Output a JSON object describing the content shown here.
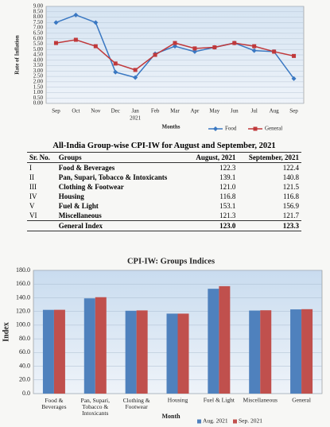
{
  "chart_data": [
    {
      "type": "line",
      "ylabel": "Rate of Inflation",
      "xlabel": "Months",
      "year_label": "2021",
      "categories": [
        "Sep",
        "Oct",
        "Nov",
        "Dec",
        "Jan",
        "Feb",
        "Mar",
        "Apr",
        "May",
        "Jun",
        "Jul",
        "Aug",
        "Sep"
      ],
      "series": [
        {
          "name": "Food",
          "color": "#3a78c2",
          "values": [
            7.5,
            8.2,
            7.5,
            2.9,
            2.4,
            4.6,
            5.3,
            4.8,
            5.2,
            5.6,
            4.9,
            4.8,
            2.3
          ]
        },
        {
          "name": "General",
          "color": "#c0393b",
          "values": [
            5.6,
            5.9,
            5.3,
            3.7,
            3.1,
            4.5,
            5.6,
            5.1,
            5.2,
            5.6,
            5.3,
            4.8,
            4.4
          ]
        }
      ],
      "ylim": [
        0,
        9
      ],
      "yticks": [
        {
          "value": 0,
          "label": "0.00"
        },
        {
          "value": 0.5,
          "label": "0.50"
        },
        {
          "value": 1,
          "label": "1.00"
        },
        {
          "value": 1.5,
          "label": "1.50"
        },
        {
          "value": 2,
          "label": "2.00"
        },
        {
          "value": 2.5,
          "label": "2.50"
        },
        {
          "value": 3,
          "label": "3.00"
        },
        {
          "value": 3.5,
          "label": "3.50"
        },
        {
          "value": 4,
          "label": "4.00"
        },
        {
          "value": 4.5,
          "label": "4.50"
        },
        {
          "value": 5,
          "label": "5.00"
        },
        {
          "value": 5.5,
          "label": "5.50"
        },
        {
          "value": 6,
          "label": "6.00"
        },
        {
          "value": 6.5,
          "label": "6.50"
        },
        {
          "value": 7,
          "label": "7.00"
        },
        {
          "value": 7.5,
          "label": "7.50"
        },
        {
          "value": 8,
          "label": "8.00"
        },
        {
          "value": 8.5,
          "label": "8.50"
        },
        {
          "value": 9,
          "label": "9.00"
        }
      ],
      "grid": true
    },
    {
      "type": "bar",
      "title": "CPI-IW: Groups Indices",
      "ylabel": "Index",
      "xlabel": "Month",
      "categories": [
        "Food &\nBeverages",
        "Pan, Supari,\nTobacco &\nIntoxicants",
        "Clothing &\nFootwear",
        "Housing",
        "Fuel & Light",
        "Miscellaneous",
        "General"
      ],
      "series": [
        {
          "name": "Aug. 2021",
          "color": "#4f81bd",
          "values": [
            122.3,
            139.1,
            121.0,
            116.8,
            153.1,
            121.3,
            123.0
          ]
        },
        {
          "name": "Sep. 2021",
          "color": "#c0504d",
          "values": [
            122.4,
            140.8,
            121.5,
            116.8,
            156.9,
            121.7,
            123.3
          ]
        }
      ],
      "ylim": [
        0,
        180
      ],
      "yticks": [
        {
          "value": 0,
          "label": "0.0"
        },
        {
          "value": 20,
          "label": "20.0"
        },
        {
          "value": 40,
          "label": "40.0"
        },
        {
          "value": 60,
          "label": "60.0"
        },
        {
          "value": 80,
          "label": "80.0"
        },
        {
          "value": 100,
          "label": "100.0"
        },
        {
          "value": 120,
          "label": "120.0"
        },
        {
          "value": 140,
          "label": "140.0"
        },
        {
          "value": 160,
          "label": "160.0"
        },
        {
          "value": 180,
          "label": "180.0"
        }
      ],
      "grid": true
    }
  ],
  "table": {
    "title": "All-India Group-wise CPI-IW for August and  September, 2021",
    "header": [
      "Sr. No.",
      "Groups",
      "August, 2021",
      "September, 2021"
    ],
    "rows": [
      [
        "I",
        "Food & Beverages",
        "122.3",
        "122.4"
      ],
      [
        "II",
        "Pan, Supari, Tobacco & Intoxicants",
        "139.1",
        "140.8"
      ],
      [
        "III",
        "Clothing & Footwear",
        "121.0",
        "121.5"
      ],
      [
        "IV",
        "Housing",
        "116.8",
        "116.8"
      ],
      [
        "V",
        "Fuel & Light",
        "153.1",
        "156.9"
      ],
      [
        "VI",
        "Miscellaneous",
        "121.3",
        "121.7"
      ],
      [
        "",
        "General Index",
        "123.0",
        "123.3"
      ]
    ]
  }
}
